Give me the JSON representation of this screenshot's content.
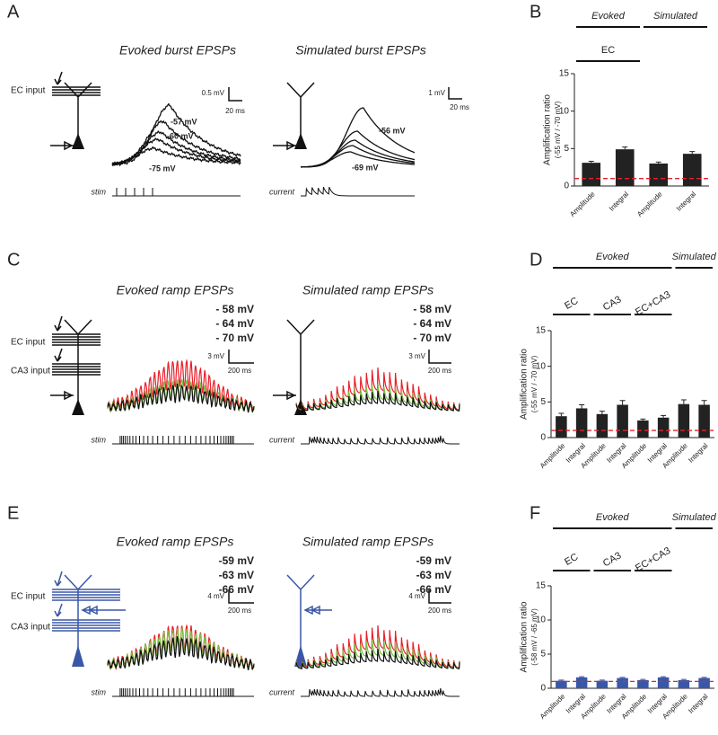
{
  "panel_letters": [
    "A",
    "B",
    "C",
    "D",
    "E",
    "F"
  ],
  "panel_a": {
    "inputs": [
      "EC input"
    ],
    "evoked": {
      "title": "Evoked burst EPSPs",
      "scale": [
        "0.5 mV",
        "20 ms"
      ],
      "trace_labels": [
        "-57 mV",
        "-60 mV",
        "-75 mV"
      ],
      "stim_label": "stim"
    },
    "simulated": {
      "title": "Simulated burst EPSPs",
      "scale": [
        "1 mV",
        "20 ms"
      ],
      "trace_labels": [
        "-56 mV",
        "-69 mV"
      ],
      "stim_label": "current"
    }
  },
  "panel_c": {
    "inputs": [
      "EC input",
      "CA3 input"
    ],
    "evoked": {
      "title": "Evoked ramp EPSPs",
      "legend": [
        {
          "label": "- 58 mV",
          "color": "#e8202a"
        },
        {
          "label": "- 64 mV",
          "color": "#7ac143"
        },
        {
          "label": "- 70 mV",
          "color": "#111111"
        }
      ],
      "scale": [
        "3 mV",
        "200 ms"
      ],
      "stim_label": "stim"
    },
    "simulated": {
      "title": "Simulated ramp EPSPs",
      "legend": [
        {
          "label": "- 58 mV",
          "color": "#e8202a"
        },
        {
          "label": "- 64 mV",
          "color": "#7ac143"
        },
        {
          "label": "- 70 mV",
          "color": "#111111"
        }
      ],
      "scale": [
        "3 mV",
        "200 ms"
      ],
      "stim_label": "current"
    }
  },
  "panel_e": {
    "inputs": [
      "EC input",
      "CA3 input"
    ],
    "color": "#3a57a7",
    "evoked": {
      "title": "Evoked ramp EPSPs",
      "legend": [
        {
          "label": "-59 mV",
          "color": "#e8202a"
        },
        {
          "label": "-63 mV",
          "color": "#7ac143"
        },
        {
          "label": "-66 mV",
          "color": "#111111"
        }
      ],
      "scale": [
        "4 mV",
        "200 ms"
      ],
      "stim_label": "stim"
    },
    "simulated": {
      "title": "Simulated ramp EPSPs",
      "legend": [
        {
          "label": "-59 mV",
          "color": "#e8202a"
        },
        {
          "label": "-63 mV",
          "color": "#7ac143"
        },
        {
          "label": "-66 mV",
          "color": "#111111"
        }
      ],
      "scale": [
        "4 mV",
        "200 ms"
      ],
      "stim_label": "current"
    }
  },
  "chart_data": [
    {
      "type": "bar",
      "ylabel": [
        "Amplification ratio",
        "(-55 mV / -70 mV)"
      ],
      "categories": [
        "Amplitude",
        "Integral",
        "Amplitude",
        "Integral"
      ],
      "values": [
        3.1,
        4.9,
        3.0,
        4.3
      ],
      "errors": [
        0.2,
        0.3,
        0.2,
        0.3
      ],
      "color": "#222222",
      "ylim": [
        0,
        15
      ],
      "yticks": [
        0,
        5,
        10,
        15
      ],
      "reference_line": 1,
      "reference_color": "#e8202a",
      "top_groups": [
        {
          "label": "Evoked",
          "span": [
            0,
            1
          ]
        },
        {
          "label": "Simulated",
          "span": [
            2,
            3
          ]
        }
      ],
      "sub_groups": [
        {
          "label": "EC",
          "span": [
            0,
            1
          ]
        }
      ]
    },
    {
      "type": "bar",
      "ylabel": [
        "Amplification ratio",
        "(-55 mV / -70 mV)"
      ],
      "categories": [
        "Amplitude",
        "Integral",
        "Amplitude",
        "Integral",
        "Amplitude",
        "Integral",
        "Amplitude",
        "Integral"
      ],
      "values": [
        3.0,
        4.1,
        3.3,
        4.6,
        2.4,
        2.8,
        4.7,
        4.6
      ],
      "errors": [
        0.4,
        0.5,
        0.4,
        0.6,
        0.2,
        0.3,
        0.6,
        0.6
      ],
      "color": "#222222",
      "ylim": [
        0,
        15
      ],
      "yticks": [
        0,
        5,
        10,
        15
      ],
      "reference_line": 1,
      "reference_color": "#e8202a",
      "top_groups": [
        {
          "label": "Evoked",
          "span": [
            0,
            5
          ]
        },
        {
          "label": "Simulated",
          "span": [
            6,
            7
          ]
        }
      ],
      "sub_groups": [
        {
          "label": "EC",
          "span": [
            0,
            1
          ]
        },
        {
          "label": "CA3",
          "span": [
            2,
            3
          ]
        },
        {
          "label": "EC+CA3",
          "span": [
            4,
            5
          ]
        }
      ]
    },
    {
      "type": "bar",
      "ylabel": [
        "Amplification ratio",
        "(-58 mV / -65 mV)"
      ],
      "categories": [
        "Amplitude",
        "Integral",
        "Amplitude",
        "Integral",
        "Amplitude",
        "Integral",
        "Amplitude",
        "Integral"
      ],
      "values": [
        1.1,
        1.6,
        1.1,
        1.5,
        1.2,
        1.6,
        1.2,
        1.5
      ],
      "errors": [
        0.1,
        0.1,
        0.1,
        0.1,
        0.1,
        0.1,
        0.1,
        0.1
      ],
      "color": "#3a57a7",
      "ylim": [
        0,
        15
      ],
      "yticks": [
        0,
        5,
        10,
        15
      ],
      "reference_line": 1,
      "reference_color": "#e8202a",
      "top_groups": [
        {
          "label": "Evoked",
          "span": [
            0,
            5
          ]
        },
        {
          "label": "Simulated",
          "span": [
            6,
            7
          ]
        }
      ],
      "sub_groups": [
        {
          "label": "EC",
          "span": [
            0,
            1
          ]
        },
        {
          "label": "CA3",
          "span": [
            2,
            3
          ]
        },
        {
          "label": "EC+CA3",
          "span": [
            4,
            5
          ]
        }
      ]
    }
  ]
}
